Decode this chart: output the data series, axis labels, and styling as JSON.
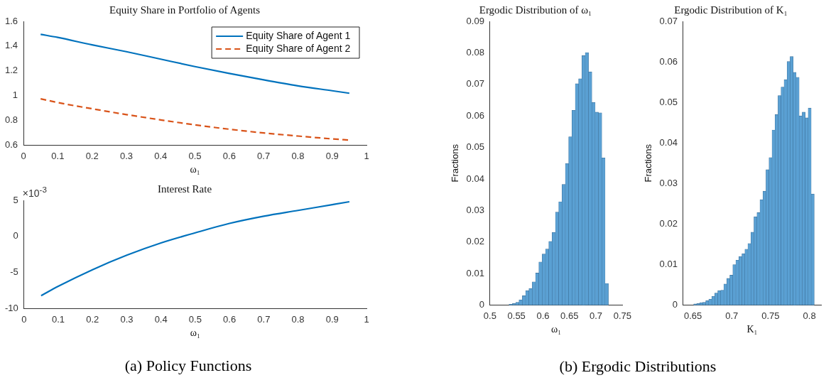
{
  "chart_data": [
    {
      "type": "line",
      "title": "Equity Share in Portfolio of Agents",
      "xlabel": "ω₁",
      "xlim": [
        0,
        1
      ],
      "xticks": [
        0,
        0.1,
        0.2,
        0.3,
        0.4,
        0.5,
        0.6,
        0.7,
        0.8,
        0.9,
        1
      ],
      "ylim": [
        0.6,
        1.6
      ],
      "yticks": [
        0.6,
        0.8,
        1,
        1.2,
        1.4,
        1.6
      ],
      "grid": false,
      "legend": "top right",
      "marker": "none",
      "x": [
        0.05,
        0.1,
        0.2,
        0.3,
        0.4,
        0.5,
        0.6,
        0.7,
        0.8,
        0.9,
        0.95
      ],
      "series": [
        {
          "name": "Equity Share of Agent 1",
          "color": "#0072bd",
          "line_style": "solid",
          "values": [
            1.495,
            1.47,
            1.41,
            1.355,
            1.295,
            1.235,
            1.18,
            1.128,
            1.08,
            1.04,
            1.02
          ]
        },
        {
          "name": "Equity Share of Agent 2",
          "color": "#d95319",
          "line_style": "dashed",
          "values": [
            0.975,
            0.945,
            0.895,
            0.848,
            0.805,
            0.765,
            0.73,
            0.7,
            0.675,
            0.652,
            0.642
          ]
        }
      ]
    },
    {
      "type": "line",
      "title": "Interest Rate",
      "xlabel": "ω₁",
      "xlim": [
        0,
        1
      ],
      "xticks": [
        0,
        0.1,
        0.2,
        0.3,
        0.4,
        0.5,
        0.6,
        0.7,
        0.8,
        0.9,
        1
      ],
      "ylim": [
        -10,
        5
      ],
      "yticks": [
        -10,
        -5,
        0,
        5
      ],
      "grid": false,
      "marker": "none",
      "annotations": [
        "×10$^{-3}$",
        "(a) Policy Functions"
      ],
      "x": [
        0.05,
        0.1,
        0.2,
        0.3,
        0.4,
        0.5,
        0.6,
        0.7,
        0.8,
        0.9,
        0.95
      ],
      "series": [
        {
          "color": "#0072bd",
          "line_style": "solid",
          "values": [
            -8.2,
            -6.9,
            -4.6,
            -2.6,
            -0.9,
            0.5,
            1.8,
            2.8,
            3.6,
            4.4,
            4.8
          ]
        }
      ]
    },
    {
      "type": "histogram",
      "title": "Ergodic Distribution of ω₁",
      "xlabel": "ω₁",
      "ylabel": "Fractions",
      "color": "#5aa0d3",
      "grid": false,
      "annotations": [
        "(b) Ergodic Distributions"
      ],
      "xlim": [
        0.5,
        0.75
      ],
      "xticks": [
        0.5,
        0.55,
        0.6,
        0.65,
        0.7,
        0.75
      ],
      "ylim": [
        0,
        0.09
      ],
      "yticks": [
        0,
        0.01,
        0.02,
        0.03,
        0.04,
        0.05,
        0.06,
        0.07,
        0.08,
        0.09
      ],
      "bins": [
        0.536,
        0.54225,
        0.5485,
        0.55475,
        0.561,
        0.56725,
        0.5735,
        0.57975,
        0.586,
        0.59225,
        0.5985,
        0.60475,
        0.611,
        0.61725,
        0.6235,
        0.62975,
        0.636,
        0.64225,
        0.6485,
        0.65475,
        0.661,
        0.66725,
        0.6735,
        0.67975,
        0.686,
        0.69225,
        0.6985,
        0.70475,
        0.711,
        0.71725,
        0.7235
      ],
      "values": [
        0.0003,
        0.0005,
        0.0009,
        0.0017,
        0.003,
        0.0046,
        0.0053,
        0.0074,
        0.0102,
        0.0137,
        0.0162,
        0.0178,
        0.0202,
        0.0231,
        0.0295,
        0.0328,
        0.0383,
        0.0449,
        0.0534,
        0.0618,
        0.0702,
        0.0718,
        0.0791,
        0.0801,
        0.074,
        0.0643,
        0.0612,
        0.061,
        0.0467,
        0.0069
      ]
    },
    {
      "type": "histogram",
      "title": "Ergodic Distribution of K₁",
      "xlabel": "K₁",
      "ylabel": "Fractions",
      "color": "#5aa0d3",
      "grid": false,
      "xlim": [
        0.6375,
        0.815
      ],
      "xticks": [
        0.65,
        0.7,
        0.75,
        0.8
      ],
      "ylim": [
        0,
        0.07
      ],
      "yticks": [
        0,
        0.01,
        0.02,
        0.03,
        0.04,
        0.05,
        0.06,
        0.07
      ],
      "bins": [
        0.651,
        0.6549,
        0.6588,
        0.6626,
        0.6665,
        0.6704,
        0.6743,
        0.6782,
        0.682,
        0.6859,
        0.6898,
        0.6937,
        0.6976,
        0.7014,
        0.7053,
        0.7092,
        0.7131,
        0.717,
        0.7208,
        0.7247,
        0.7286,
        0.7325,
        0.7364,
        0.7402,
        0.7441,
        0.748,
        0.7519,
        0.7558,
        0.7596,
        0.7635,
        0.7674,
        0.7713,
        0.7752,
        0.779,
        0.7829,
        0.7868,
        0.7907,
        0.7946,
        0.7984,
        0.8023,
        0.8062
      ],
      "values": [
        0.0003,
        0.0004,
        0.0006,
        0.0007,
        0.0011,
        0.0015,
        0.0022,
        0.003,
        0.0036,
        0.0037,
        0.0052,
        0.0066,
        0.0074,
        0.01,
        0.0111,
        0.012,
        0.0127,
        0.0138,
        0.0152,
        0.018,
        0.0218,
        0.0228,
        0.026,
        0.0281,
        0.0334,
        0.0364,
        0.0432,
        0.047,
        0.0517,
        0.0538,
        0.0556,
        0.0601,
        0.0613,
        0.0574,
        0.0562,
        0.0467,
        0.0476,
        0.0462,
        0.0486,
        0.0274
      ]
    }
  ]
}
